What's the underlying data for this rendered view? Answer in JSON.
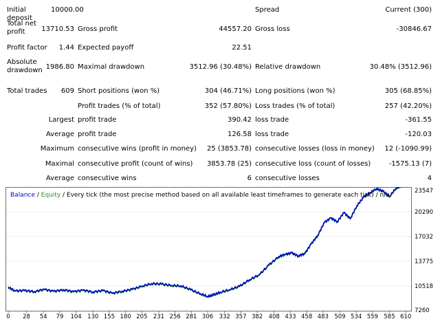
{
  "report": {
    "initial_deposit": {
      "label": "Initial deposit",
      "value": "10000.00"
    },
    "spread": {
      "label": "Spread",
      "value": "Current (300)"
    },
    "total_net_profit": {
      "label": "Total net profit",
      "value": "13710.53"
    },
    "gross_profit": {
      "label": "Gross profit",
      "value": "44557.20"
    },
    "gross_loss": {
      "label": "Gross loss",
      "value": "-30846.67"
    },
    "profit_factor": {
      "label": "Profit factor",
      "value": "1.44"
    },
    "expected_payoff": {
      "label": "Expected payoff",
      "value": "22.51"
    },
    "absolute_drawdown": {
      "label": "Absolute drawdown",
      "value": "1986.80"
    },
    "maximal_drawdown": {
      "label": "Maximal drawdown",
      "value": "3512.96 (30.48%)"
    },
    "relative_drawdown": {
      "label": "Relative drawdown",
      "value": "30.48% (3512.96)"
    },
    "total_trades": {
      "label": "Total trades",
      "value": "609"
    },
    "short_positions": {
      "label": "Short positions (won %)",
      "value": "304 (46.71%)"
    },
    "long_positions": {
      "label": "Long positions (won %)",
      "value": "305 (68.85%)"
    },
    "profit_trades": {
      "label": "Profit trades (% of total)",
      "value": "352 (57.80%)"
    },
    "loss_trades": {
      "label": "Loss trades (% of total)",
      "value": "257 (42.20%)"
    },
    "largest": {
      "prefix": "Largest",
      "profit_label": "profit trade",
      "profit_value": "390.42",
      "loss_label": "loss trade",
      "loss_value": "-361.55"
    },
    "average": {
      "prefix": "Average",
      "profit_label": "profit trade",
      "profit_value": "126.58",
      "loss_label": "loss trade",
      "loss_value": "-120.03"
    },
    "maximum": {
      "prefix": "Maximum",
      "wins_label": "consecutive wins (profit in money)",
      "wins_value": "25 (3853.78)",
      "losses_label": "consecutive losses (loss in money)",
      "losses_value": "12 (-1090.99)"
    },
    "maximal": {
      "prefix": "Maximal",
      "profit_label": "consecutive profit (count of wins)",
      "profit_value": "3853.78 (25)",
      "loss_label": "consecutive loss (count of losses)",
      "loss_value": "-1575.13 (7)"
    },
    "average_consecutive": {
      "prefix": "Average",
      "wins_label": "consecutive wins",
      "wins_value": "6",
      "losses_label": "consecutive losses",
      "losses_value": "4"
    }
  },
  "legend": {
    "balance": "Balance",
    "sep": " / ",
    "equity": "Equity",
    "rest": " / Every tick (the most precise method based on all available least timeframes to generate each tick) / n/a"
  },
  "colors": {
    "balance": "#0000c8",
    "equity": "#1a9a1a",
    "grid": "#c8c8c8"
  },
  "chart_data": {
    "type": "line",
    "x_ticks": [
      "0",
      "28",
      "54",
      "79",
      "104",
      "130",
      "155",
      "180",
      "205",
      "231",
      "256",
      "281",
      "306",
      "332",
      "357",
      "382",
      "408",
      "433",
      "458",
      "483",
      "509",
      "534",
      "559",
      "585",
      "610"
    ],
    "y_ticks": [
      "23547",
      "20290",
      "17032",
      "13775",
      "10518",
      "7260"
    ],
    "ylim": [
      7260,
      23547
    ],
    "xlim": [
      0,
      614
    ],
    "series": [
      {
        "name": "Balance",
        "points": [
          [
            0,
            10400
          ],
          [
            10,
            9900
          ],
          [
            25,
            9950
          ],
          [
            40,
            9800
          ],
          [
            55,
            10100
          ],
          [
            70,
            9850
          ],
          [
            85,
            10050
          ],
          [
            100,
            9800
          ],
          [
            115,
            10000
          ],
          [
            130,
            9750
          ],
          [
            145,
            9950
          ],
          [
            160,
            9600
          ],
          [
            175,
            9850
          ],
          [
            190,
            10100
          ],
          [
            205,
            10500
          ],
          [
            220,
            10850
          ],
          [
            235,
            10800
          ],
          [
            250,
            10600
          ],
          [
            265,
            10550
          ],
          [
            280,
            10050
          ],
          [
            295,
            9500
          ],
          [
            306,
            9150
          ],
          [
            315,
            9350
          ],
          [
            325,
            9700
          ],
          [
            340,
            10050
          ],
          [
            355,
            10500
          ],
          [
            370,
            11350
          ],
          [
            385,
            12000
          ],
          [
            400,
            13300
          ],
          [
            415,
            14400
          ],
          [
            425,
            14700
          ],
          [
            435,
            14900
          ],
          [
            445,
            14500
          ],
          [
            455,
            14800
          ],
          [
            465,
            16100
          ],
          [
            475,
            17200
          ],
          [
            485,
            18900
          ],
          [
            495,
            19500
          ],
          [
            505,
            19000
          ],
          [
            515,
            20200
          ],
          [
            525,
            19400
          ],
          [
            535,
            21100
          ],
          [
            545,
            22200
          ],
          [
            555,
            22800
          ],
          [
            565,
            23350
          ],
          [
            575,
            23000
          ],
          [
            585,
            22300
          ],
          [
            595,
            23400
          ],
          [
            605,
            23750
          ]
        ]
      }
    ]
  }
}
